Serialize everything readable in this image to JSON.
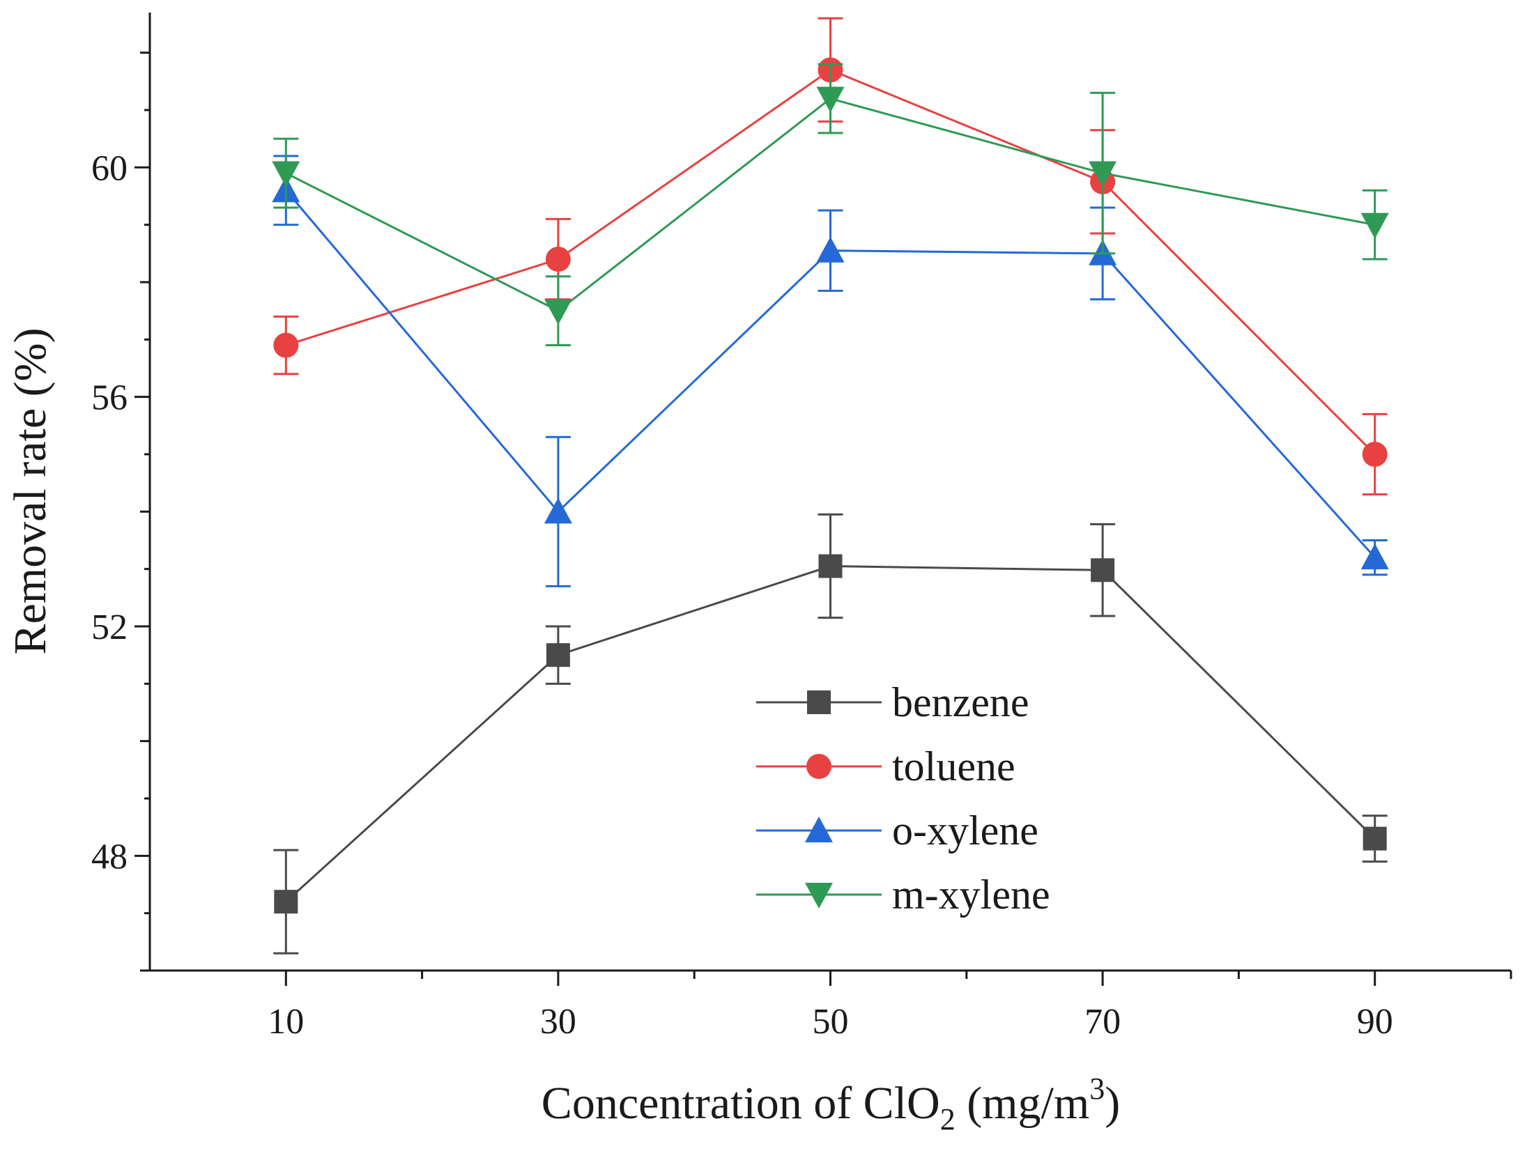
{
  "chart_data": {
    "type": "line",
    "xlabel": "Concentration of ClO",
    "xlabel_sub": "2",
    "xlabel_rest": " (mg/m",
    "xlabel_sup": "3",
    "xlabel_end": ")",
    "ylabel": "Removal rate (%)",
    "x": [
      10,
      30,
      50,
      70,
      90
    ],
    "x_ticks": [
      "10",
      "30",
      "50",
      "70",
      "90"
    ],
    "xlim": [
      0,
      100
    ],
    "y_ticks": [
      "48",
      "52",
      "56",
      "60"
    ],
    "y_tick_values": [
      48,
      52,
      56,
      60
    ],
    "ylim": [
      46,
      62.7
    ],
    "legend_position": "lower-center",
    "series": [
      {
        "name": "benzene",
        "color": "#4a4a4a",
        "marker": "square",
        "values": [
          47.2,
          51.5,
          53.05,
          52.98,
          48.3
        ],
        "error": [
          0.9,
          0.5,
          0.9,
          0.8,
          0.4
        ]
      },
      {
        "name": "toluene",
        "color": "#e84141",
        "marker": "circle",
        "values": [
          56.9,
          58.4,
          61.7,
          59.75,
          55.0
        ],
        "error": [
          0.5,
          0.7,
          0.9,
          0.9,
          0.7
        ]
      },
      {
        "name": "o-xylene",
        "color": "#2469d6",
        "marker": "triangle-up",
        "values": [
          59.6,
          54.0,
          58.55,
          58.5,
          53.2
        ],
        "error": [
          0.6,
          1.3,
          0.7,
          0.8,
          0.3
        ]
      },
      {
        "name": "m-xylene",
        "color": "#2e9a55",
        "marker": "triangle-down",
        "values": [
          59.9,
          57.5,
          61.2,
          59.9,
          59.0
        ],
        "error": [
          0.6,
          0.6,
          0.6,
          1.4,
          0.6
        ]
      }
    ]
  }
}
